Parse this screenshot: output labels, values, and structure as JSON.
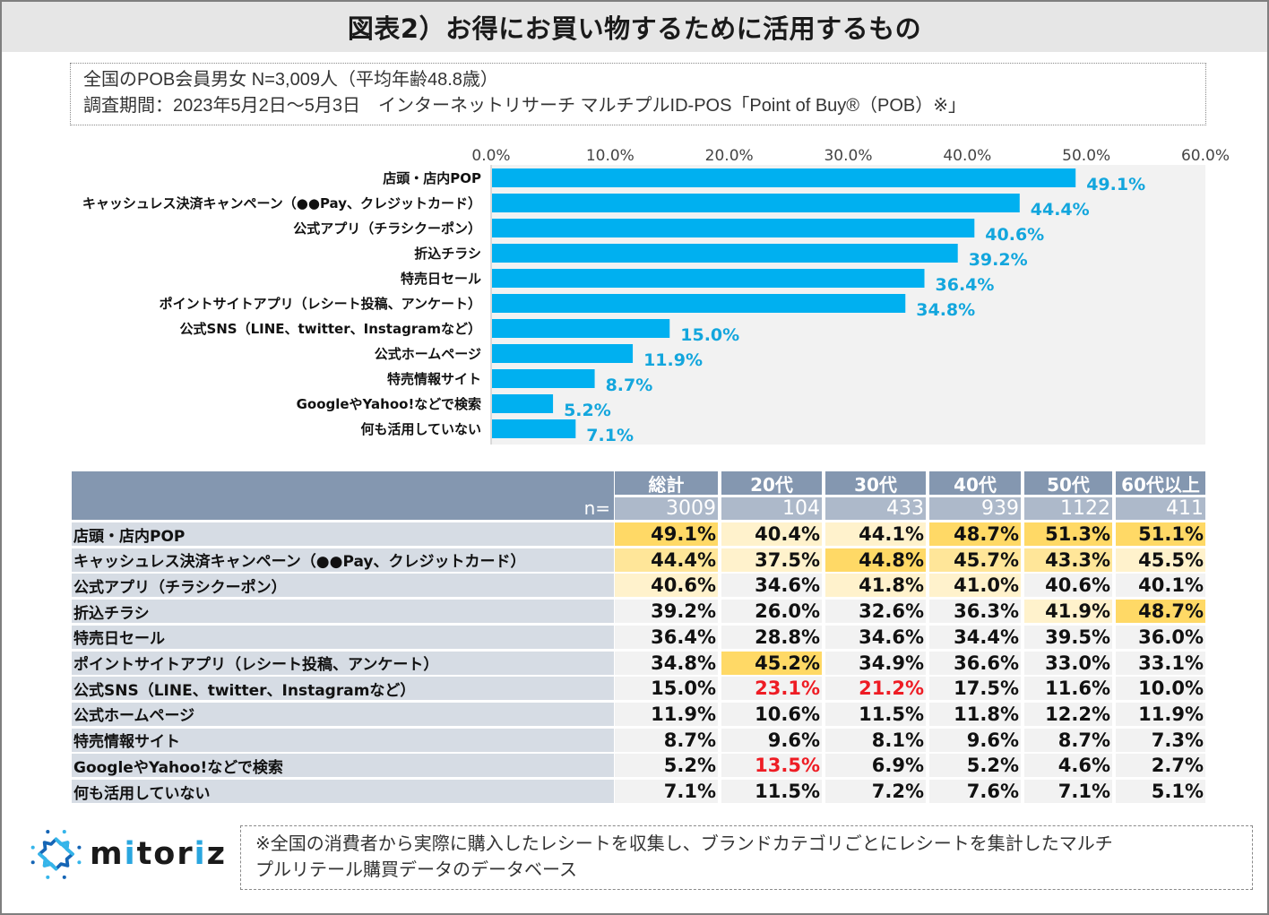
{
  "title": "図表2）お得にお買い物するために活用するもの",
  "info": {
    "line1": "全国のPOB会員男女 N=3,009人（平均年齢48.8歳）",
    "line2": "調査期間：2023年5月2日～5月3日　インターネットリサーチ マルチプルID-POS「Point of Buy®（POB）※」"
  },
  "colors": {
    "bar": "#00b0f0",
    "value_label": "#13a6dd",
    "plot_bg": "#f2f2f2",
    "table_header": "#8497b0",
    "table_n_row": "#adb9ca",
    "table_label_bg": "#d6dce4",
    "highlight_strong": "#ffd966",
    "highlight_mid": "#ffe699",
    "highlight_light": "#fff2cc",
    "red_text": "#ee1c24"
  },
  "chart_data": {
    "type": "bar",
    "orientation": "horizontal",
    "title": "",
    "xlabel": "",
    "ylabel": "",
    "xlim": [
      0,
      60
    ],
    "x_ticks": [
      "0.0%",
      "10.0%",
      "20.0%",
      "30.0%",
      "40.0%",
      "50.0%",
      "60.0%"
    ],
    "x_tick_values": [
      0,
      10,
      20,
      30,
      40,
      50,
      60
    ],
    "grid": false,
    "categories": [
      "店頭・店内POP",
      "キャッシュレス決済キャンペーン（●●Pay、クレジットカード）",
      "公式アプリ（チラシクーポン）",
      "折込チラシ",
      "特売日セール",
      "ポイントサイトアプリ（レシート投稿、アンケート）",
      "公式SNS（LINE、twitter、Instagramなど）",
      "公式ホームページ",
      "特売情報サイト",
      "GoogleやYahoo!などで検索",
      "何も活用していない"
    ],
    "values": [
      49.1,
      44.4,
      40.6,
      39.2,
      36.4,
      34.8,
      15.0,
      11.9,
      8.7,
      5.2,
      7.1
    ],
    "value_labels": [
      "49.1%",
      "44.4%",
      "40.6%",
      "39.2%",
      "36.4%",
      "34.8%",
      "15.0%",
      "11.9%",
      "8.7%",
      "5.2%",
      "7.1%"
    ]
  },
  "table": {
    "n_label": "n=",
    "columns": [
      {
        "label": "総計",
        "n": "3009"
      },
      {
        "label": "20代",
        "n": "104"
      },
      {
        "label": "30代",
        "n": "433"
      },
      {
        "label": "40代",
        "n": "939"
      },
      {
        "label": "50代",
        "n": "1122"
      },
      {
        "label": "60代以上",
        "n": "411"
      }
    ],
    "rows": [
      {
        "label": "店頭・店内POP",
        "cells": [
          {
            "v": "49.1%",
            "hl": "strong"
          },
          {
            "v": "40.4%",
            "hl": "light"
          },
          {
            "v": "44.1%",
            "hl": "light"
          },
          {
            "v": "48.7%",
            "hl": "strong"
          },
          {
            "v": "51.3%",
            "hl": "strong"
          },
          {
            "v": "51.1%",
            "hl": "strong"
          }
        ]
      },
      {
        "label": "キャッシュレス決済キャンペーン（●●Pay、クレジットカード）",
        "cells": [
          {
            "v": "44.4%",
            "hl": "mid"
          },
          {
            "v": "37.5%",
            "hl": "light"
          },
          {
            "v": "44.8%",
            "hl": "strong"
          },
          {
            "v": "45.7%",
            "hl": "mid"
          },
          {
            "v": "43.3%",
            "hl": "mid"
          },
          {
            "v": "45.5%",
            "hl": "light"
          }
        ]
      },
      {
        "label": "公式アプリ（チラシクーポン）",
        "cells": [
          {
            "v": "40.6%",
            "hl": "light"
          },
          {
            "v": "34.6%",
            "hl": ""
          },
          {
            "v": "41.8%",
            "hl": "light"
          },
          {
            "v": "41.0%",
            "hl": "light"
          },
          {
            "v": "40.6%",
            "hl": ""
          },
          {
            "v": "40.1%",
            "hl": ""
          }
        ]
      },
      {
        "label": "折込チラシ",
        "cells": [
          {
            "v": "39.2%",
            "hl": ""
          },
          {
            "v": "26.0%",
            "hl": ""
          },
          {
            "v": "32.6%",
            "hl": ""
          },
          {
            "v": "36.3%",
            "hl": ""
          },
          {
            "v": "41.9%",
            "hl": "light"
          },
          {
            "v": "48.7%",
            "hl": "strong"
          }
        ]
      },
      {
        "label": "特売日セール",
        "cells": [
          {
            "v": "36.4%",
            "hl": ""
          },
          {
            "v": "28.8%",
            "hl": ""
          },
          {
            "v": "34.6%",
            "hl": ""
          },
          {
            "v": "34.4%",
            "hl": ""
          },
          {
            "v": "39.5%",
            "hl": ""
          },
          {
            "v": "36.0%",
            "hl": ""
          }
        ]
      },
      {
        "label": "ポイントサイトアプリ（レシート投稿、アンケート）",
        "cells": [
          {
            "v": "34.8%",
            "hl": ""
          },
          {
            "v": "45.2%",
            "hl": "strong"
          },
          {
            "v": "34.9%",
            "hl": ""
          },
          {
            "v": "36.6%",
            "hl": ""
          },
          {
            "v": "33.0%",
            "hl": ""
          },
          {
            "v": "33.1%",
            "hl": ""
          }
        ]
      },
      {
        "label": "公式SNS（LINE、twitter、Instagramなど）",
        "cells": [
          {
            "v": "15.0%",
            "hl": ""
          },
          {
            "v": "23.1%",
            "hl": "",
            "red": true
          },
          {
            "v": "21.2%",
            "hl": "",
            "red": true
          },
          {
            "v": "17.5%",
            "hl": ""
          },
          {
            "v": "11.6%",
            "hl": ""
          },
          {
            "v": "10.0%",
            "hl": ""
          }
        ]
      },
      {
        "label": "公式ホームページ",
        "cells": [
          {
            "v": "11.9%",
            "hl": ""
          },
          {
            "v": "10.6%",
            "hl": ""
          },
          {
            "v": "11.5%",
            "hl": ""
          },
          {
            "v": "11.8%",
            "hl": ""
          },
          {
            "v": "12.2%",
            "hl": ""
          },
          {
            "v": "11.9%",
            "hl": ""
          }
        ]
      },
      {
        "label": "特売情報サイト",
        "cells": [
          {
            "v": "8.7%",
            "hl": ""
          },
          {
            "v": "9.6%",
            "hl": ""
          },
          {
            "v": "8.1%",
            "hl": ""
          },
          {
            "v": "9.6%",
            "hl": ""
          },
          {
            "v": "8.7%",
            "hl": ""
          },
          {
            "v": "7.3%",
            "hl": ""
          }
        ]
      },
      {
        "label": "GoogleやYahoo!などで検索",
        "cells": [
          {
            "v": "5.2%",
            "hl": ""
          },
          {
            "v": "13.5%",
            "hl": "",
            "red": true
          },
          {
            "v": "6.9%",
            "hl": ""
          },
          {
            "v": "5.2%",
            "hl": ""
          },
          {
            "v": "4.6%",
            "hl": ""
          },
          {
            "v": "2.7%",
            "hl": ""
          }
        ]
      },
      {
        "label": "何も活用していない",
        "cells": [
          {
            "v": "7.1%",
            "hl": ""
          },
          {
            "v": "11.5%",
            "hl": ""
          },
          {
            "v": "7.2%",
            "hl": ""
          },
          {
            "v": "7.6%",
            "hl": ""
          },
          {
            "v": "7.1%",
            "hl": ""
          },
          {
            "v": "5.1%",
            "hl": ""
          }
        ]
      }
    ]
  },
  "footer": {
    "logo_text_pre": "m",
    "logo_text_i": "i",
    "logo_text_mid": "tor",
    "logo_text_i2": "i",
    "logo_text_post": "z",
    "logo_icon": "mitoriz-star-icon",
    "note_line1": "※全国の消費者から実際に購入したレシートを収集し、ブランドカテゴリごとにレシートを集計したマルチ",
    "note_line2": "プルリテール購買データのデータベース"
  }
}
